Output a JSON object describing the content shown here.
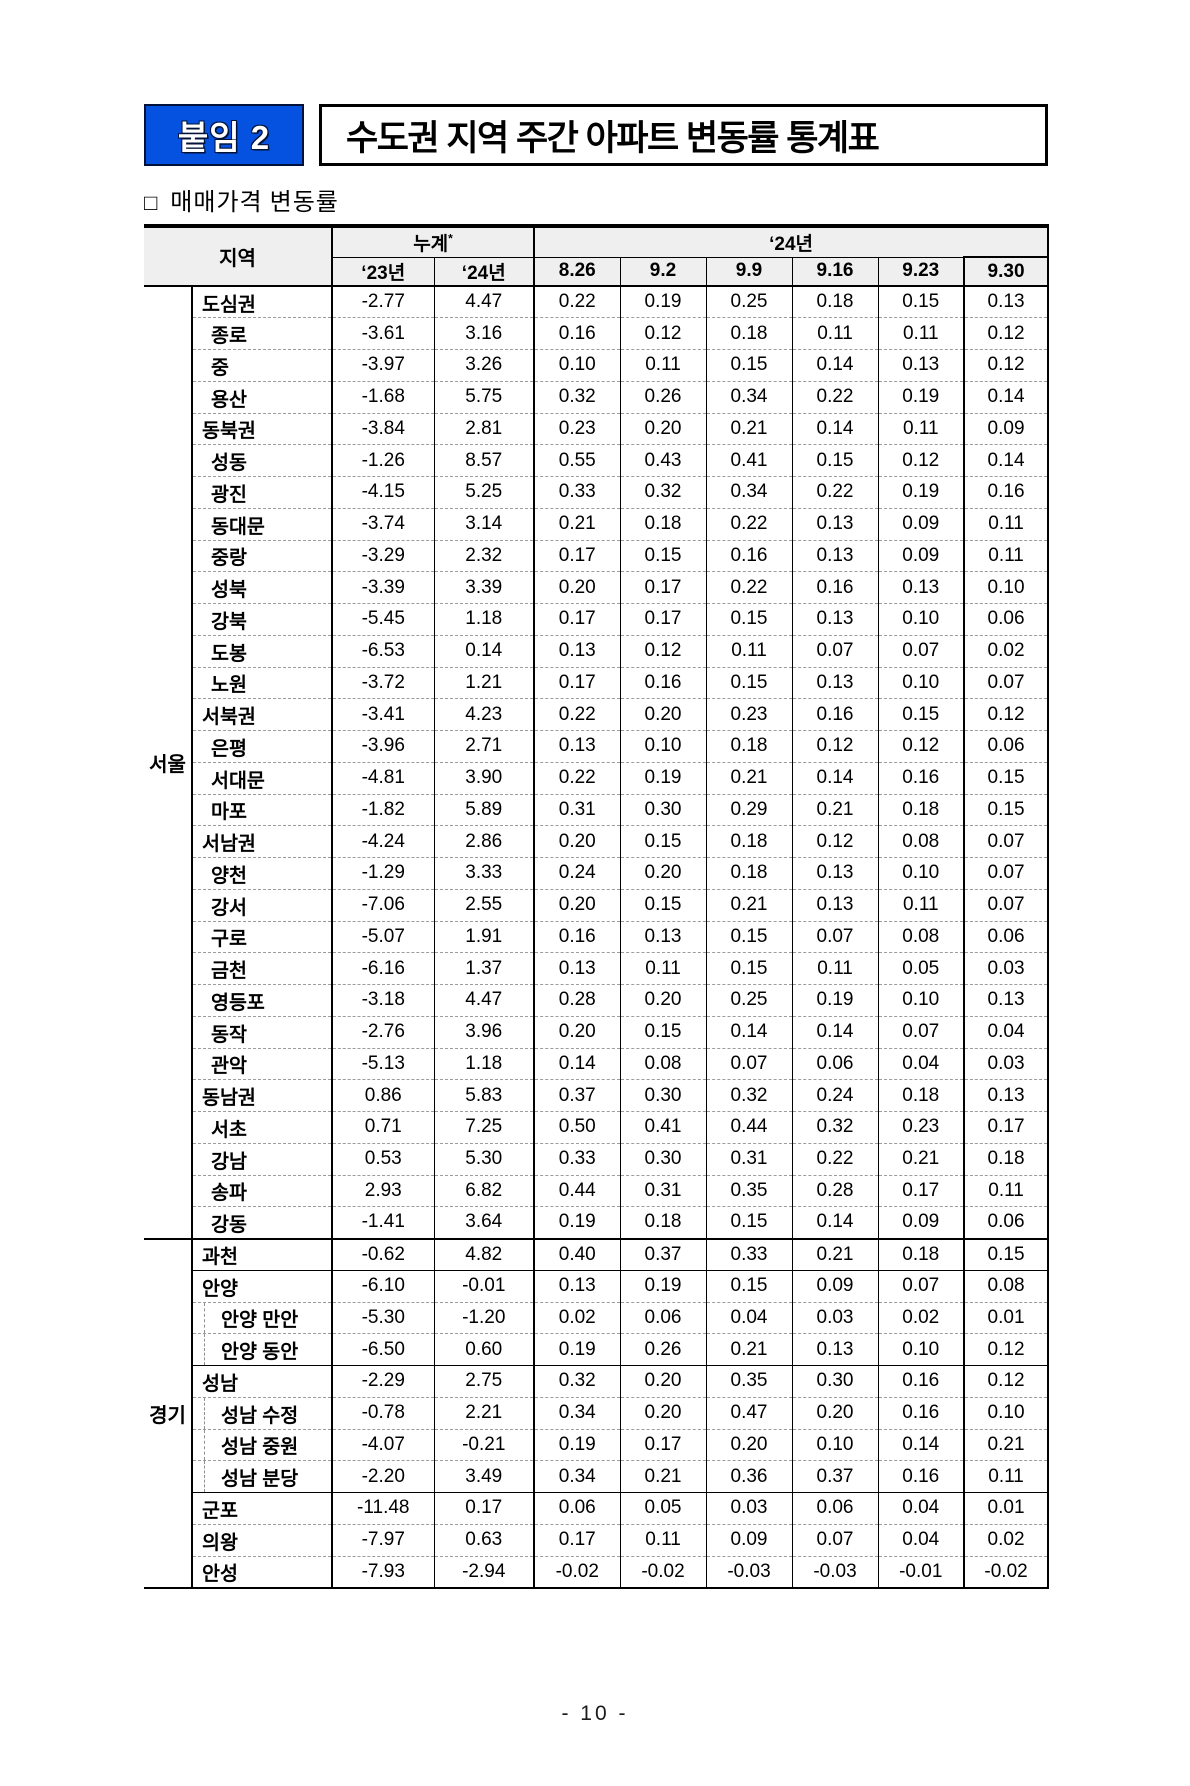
{
  "page": {
    "badge_label": "붙임 2",
    "title": "수도권 지역 주간 아파트 변동률 통계표",
    "section_bullet": "□",
    "section_title": "매매가격 변동률",
    "page_number": "- 10 -"
  },
  "colors": {
    "badge_blue": "#0452df",
    "header_gray": "#efefef",
    "border_black": "#000000",
    "dash_gray": "#9c9c9c"
  },
  "table": {
    "col_region": "지역",
    "col_cumulative": "누계",
    "col_cumulative_note": "*",
    "col_year": "‘24년",
    "sub_cols_cumulative": [
      "‘23년",
      "‘24년"
    ],
    "sub_cols_weeks": [
      "8.26",
      "9.2",
      "9.9",
      "9.16",
      "9.23",
      "9.30"
    ],
    "groups": [
      {
        "label": "서울",
        "rows": [
          {
            "name": "도심권",
            "level": "zone",
            "values": [
              "-2.77",
              "4.47",
              "0.22",
              "0.19",
              "0.25",
              "0.18",
              "0.15",
              "0.13"
            ]
          },
          {
            "name": "종로",
            "level": "district",
            "values": [
              "-3.61",
              "3.16",
              "0.16",
              "0.12",
              "0.18",
              "0.11",
              "0.11",
              "0.12"
            ]
          },
          {
            "name": "중",
            "level": "district",
            "values": [
              "-3.97",
              "3.26",
              "0.10",
              "0.11",
              "0.15",
              "0.14",
              "0.13",
              "0.12"
            ]
          },
          {
            "name": "용산",
            "level": "district",
            "values": [
              "-1.68",
              "5.75",
              "0.32",
              "0.26",
              "0.34",
              "0.22",
              "0.19",
              "0.14"
            ]
          },
          {
            "name": "동북권",
            "level": "zone",
            "values": [
              "-3.84",
              "2.81",
              "0.23",
              "0.20",
              "0.21",
              "0.14",
              "0.11",
              "0.09"
            ]
          },
          {
            "name": "성동",
            "level": "district",
            "values": [
              "-1.26",
              "8.57",
              "0.55",
              "0.43",
              "0.41",
              "0.15",
              "0.12",
              "0.14"
            ]
          },
          {
            "name": "광진",
            "level": "district",
            "values": [
              "-4.15",
              "5.25",
              "0.33",
              "0.32",
              "0.34",
              "0.22",
              "0.19",
              "0.16"
            ]
          },
          {
            "name": "동대문",
            "level": "district",
            "values": [
              "-3.74",
              "3.14",
              "0.21",
              "0.18",
              "0.22",
              "0.13",
              "0.09",
              "0.11"
            ]
          },
          {
            "name": "중랑",
            "level": "district",
            "values": [
              "-3.29",
              "2.32",
              "0.17",
              "0.15",
              "0.16",
              "0.13",
              "0.09",
              "0.11"
            ]
          },
          {
            "name": "성북",
            "level": "district",
            "values": [
              "-3.39",
              "3.39",
              "0.20",
              "0.17",
              "0.22",
              "0.16",
              "0.13",
              "0.10"
            ]
          },
          {
            "name": "강북",
            "level": "district",
            "values": [
              "-5.45",
              "1.18",
              "0.17",
              "0.17",
              "0.15",
              "0.13",
              "0.10",
              "0.06"
            ]
          },
          {
            "name": "도봉",
            "level": "district",
            "values": [
              "-6.53",
              "0.14",
              "0.13",
              "0.12",
              "0.11",
              "0.07",
              "0.07",
              "0.02"
            ]
          },
          {
            "name": "노원",
            "level": "district",
            "values": [
              "-3.72",
              "1.21",
              "0.17",
              "0.16",
              "0.15",
              "0.13",
              "0.10",
              "0.07"
            ]
          },
          {
            "name": "서북권",
            "level": "zone",
            "values": [
              "-3.41",
              "4.23",
              "0.22",
              "0.20",
              "0.23",
              "0.16",
              "0.15",
              "0.12"
            ]
          },
          {
            "name": "은평",
            "level": "district",
            "values": [
              "-3.96",
              "2.71",
              "0.13",
              "0.10",
              "0.18",
              "0.12",
              "0.12",
              "0.06"
            ]
          },
          {
            "name": "서대문",
            "level": "district",
            "values": [
              "-4.81",
              "3.90",
              "0.22",
              "0.19",
              "0.21",
              "0.14",
              "0.16",
              "0.15"
            ]
          },
          {
            "name": "마포",
            "level": "district",
            "values": [
              "-1.82",
              "5.89",
              "0.31",
              "0.30",
              "0.29",
              "0.21",
              "0.18",
              "0.15"
            ]
          },
          {
            "name": "서남권",
            "level": "zone",
            "values": [
              "-4.24",
              "2.86",
              "0.20",
              "0.15",
              "0.18",
              "0.12",
              "0.08",
              "0.07"
            ]
          },
          {
            "name": "양천",
            "level": "district",
            "values": [
              "-1.29",
              "3.33",
              "0.24",
              "0.20",
              "0.18",
              "0.13",
              "0.10",
              "0.07"
            ]
          },
          {
            "name": "강서",
            "level": "district",
            "values": [
              "-7.06",
              "2.55",
              "0.20",
              "0.15",
              "0.21",
              "0.13",
              "0.11",
              "0.07"
            ]
          },
          {
            "name": "구로",
            "level": "district",
            "values": [
              "-5.07",
              "1.91",
              "0.16",
              "0.13",
              "0.15",
              "0.07",
              "0.08",
              "0.06"
            ]
          },
          {
            "name": "금천",
            "level": "district",
            "values": [
              "-6.16",
              "1.37",
              "0.13",
              "0.11",
              "0.15",
              "0.11",
              "0.05",
              "0.03"
            ]
          },
          {
            "name": "영등포",
            "level": "district",
            "values": [
              "-3.18",
              "4.47",
              "0.28",
              "0.20",
              "0.25",
              "0.19",
              "0.10",
              "0.13"
            ]
          },
          {
            "name": "동작",
            "level": "district",
            "values": [
              "-2.76",
              "3.96",
              "0.20",
              "0.15",
              "0.14",
              "0.14",
              "0.07",
              "0.04"
            ]
          },
          {
            "name": "관악",
            "level": "district",
            "values": [
              "-5.13",
              "1.18",
              "0.14",
              "0.08",
              "0.07",
              "0.06",
              "0.04",
              "0.03"
            ]
          },
          {
            "name": "동남권",
            "level": "zone",
            "values": [
              "0.86",
              "5.83",
              "0.37",
              "0.30",
              "0.32",
              "0.24",
              "0.18",
              "0.13"
            ]
          },
          {
            "name": "서초",
            "level": "district",
            "values": [
              "0.71",
              "7.25",
              "0.50",
              "0.41",
              "0.44",
              "0.32",
              "0.23",
              "0.17"
            ]
          },
          {
            "name": "강남",
            "level": "district",
            "values": [
              "0.53",
              "5.30",
              "0.33",
              "0.30",
              "0.31",
              "0.22",
              "0.21",
              "0.18"
            ]
          },
          {
            "name": "송파",
            "level": "district",
            "values": [
              "2.93",
              "6.82",
              "0.44",
              "0.31",
              "0.35",
              "0.28",
              "0.17",
              "0.11"
            ]
          },
          {
            "name": "강동",
            "level": "district",
            "values": [
              "-1.41",
              "3.64",
              "0.19",
              "0.18",
              "0.15",
              "0.14",
              "0.09",
              "0.06"
            ]
          }
        ]
      },
      {
        "label": "경기",
        "rows": [
          {
            "name": "과천",
            "level": "zone",
            "values": [
              "-0.62",
              "4.82",
              "0.40",
              "0.37",
              "0.33",
              "0.21",
              "0.18",
              "0.15"
            ]
          },
          {
            "name": "안양",
            "level": "zone",
            "solid_top": true,
            "values": [
              "-6.10",
              "-0.01",
              "0.13",
              "0.19",
              "0.15",
              "0.09",
              "0.07",
              "0.08"
            ]
          },
          {
            "name": "안양 만안",
            "level": "sub",
            "values": [
              "-5.30",
              "-1.20",
              "0.02",
              "0.06",
              "0.04",
              "0.03",
              "0.02",
              "0.01"
            ]
          },
          {
            "name": "안양 동안",
            "level": "sub",
            "values": [
              "-6.50",
              "0.60",
              "0.19",
              "0.26",
              "0.21",
              "0.13",
              "0.10",
              "0.12"
            ]
          },
          {
            "name": "성남",
            "level": "zone",
            "solid_top": true,
            "values": [
              "-2.29",
              "2.75",
              "0.32",
              "0.20",
              "0.35",
              "0.30",
              "0.16",
              "0.12"
            ]
          },
          {
            "name": "성남 수정",
            "level": "sub",
            "values": [
              "-0.78",
              "2.21",
              "0.34",
              "0.20",
              "0.47",
              "0.20",
              "0.16",
              "0.10"
            ]
          },
          {
            "name": "성남 중원",
            "level": "sub",
            "values": [
              "-4.07",
              "-0.21",
              "0.19",
              "0.17",
              "0.20",
              "0.10",
              "0.14",
              "0.21"
            ]
          },
          {
            "name": "성남 분당",
            "level": "sub",
            "values": [
              "-2.20",
              "3.49",
              "0.34",
              "0.21",
              "0.36",
              "0.37",
              "0.16",
              "0.11"
            ]
          },
          {
            "name": "군포",
            "level": "zone",
            "solid_top": true,
            "values": [
              "-11.48",
              "0.17",
              "0.06",
              "0.05",
              "0.03",
              "0.06",
              "0.04",
              "0.01"
            ]
          },
          {
            "name": "의왕",
            "level": "zone",
            "values": [
              "-7.97",
              "0.63",
              "0.17",
              "0.11",
              "0.09",
              "0.07",
              "0.04",
              "0.02"
            ]
          },
          {
            "name": "안성",
            "level": "zone",
            "values": [
              "-7.93",
              "-2.94",
              "-0.02",
              "-0.02",
              "-0.03",
              "-0.03",
              "-0.01",
              "-0.02"
            ]
          }
        ]
      }
    ]
  }
}
